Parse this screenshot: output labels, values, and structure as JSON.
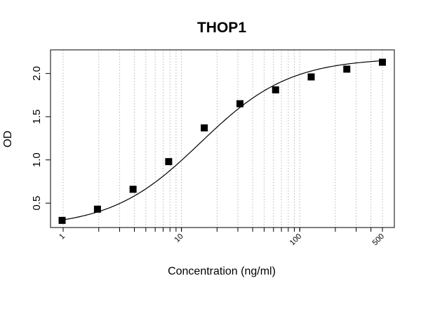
{
  "chart_data": {
    "type": "scatter",
    "title": "THOP1",
    "xlabel": "Concentration (ng/ml)",
    "ylabel": "OD",
    "x_scale": "log",
    "xlim": [
      1,
      500
    ],
    "ylim": [
      0.25,
      2.2
    ],
    "x_ticks": [
      1,
      10,
      100,
      500
    ],
    "x_tick_labels": [
      "1",
      "10",
      "100",
      "500"
    ],
    "y_ticks": [
      0.5,
      1.0,
      1.5,
      2.0
    ],
    "y_tick_labels": [
      "0.5",
      "1.0",
      "1.5",
      "2.0"
    ],
    "grid": "vertical dotted at log minor ticks",
    "marker": "filled-square",
    "fit_curve": "sigmoid (4PL) through points",
    "series": [
      {
        "x": [
          0.98,
          1.95,
          3.9,
          7.8,
          15.6,
          31.25,
          62.5,
          125,
          250,
          500
        ],
        "y": [
          0.3,
          0.43,
          0.66,
          0.98,
          1.37,
          1.65,
          1.81,
          1.96,
          2.05,
          2.13
        ]
      }
    ]
  }
}
